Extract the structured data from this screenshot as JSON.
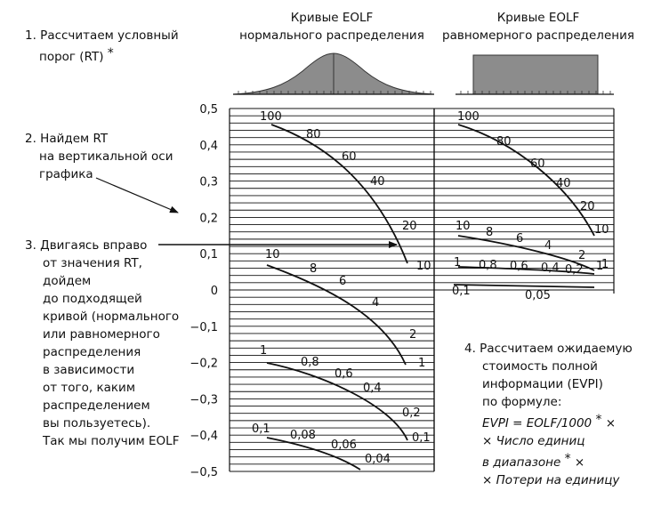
{
  "headers": {
    "normal": [
      "Кривые EOLF",
      "нормального распределения"
    ],
    "uniform": [
      "Кривые EOLF",
      "равномерного распределения"
    ]
  },
  "steps": {
    "step1": {
      "lines": [
        "1. Рассчитаем условный",
        "порог (RT)"
      ],
      "star": "*"
    },
    "step2": {
      "lines": [
        "2. Найдем RT",
        "на вертикальной оси",
        "графика"
      ]
    },
    "step3": {
      "lines": [
        "3.  Двигаясь вправо",
        "от значения RT,",
        "дойдем",
        "до подходящей",
        "кривой (нормального",
        "или равномерного",
        "распределения",
        "в зависимости",
        "от того, каким",
        "распределением",
        "вы пользуетесь).",
        "Так мы получим EOLF"
      ]
    },
    "step4": {
      "lines": [
        "4.  Рассчитаем ожидаемую",
        "стоимость полной",
        "информации (EVPI)",
        "по формуле:"
      ],
      "formula": [
        "EVPI = EOLF/1000",
        "× Число единиц",
        "в диапазоне",
        "× Потери на единицу"
      ],
      "star": "*",
      "times": "×"
    }
  },
  "axis": {
    "ticks": [
      "0,5",
      "0,4",
      "0,3",
      "0,2",
      "0,1",
      "0",
      "−0,1",
      "−0,2",
      "−0,3",
      "−0,4",
      "−0,5"
    ]
  },
  "normal_curve_groups": [
    {
      "labels": [
        "100",
        "80",
        "60",
        "40",
        "20",
        "10"
      ]
    },
    {
      "labels": [
        "10",
        "8",
        "6",
        "4",
        "2",
        "1"
      ]
    },
    {
      "labels": [
        "1",
        "0,8",
        "0,6",
        "0,4",
        "0,2",
        "0,1"
      ]
    },
    {
      "labels": [
        "0,1",
        "0,08",
        "0,06",
        "0,04"
      ]
    }
  ],
  "uniform_curve_groups": [
    {
      "labels": [
        "100",
        "80",
        "60",
        "40",
        "20",
        "10"
      ]
    },
    {
      "labels": [
        "10",
        "8",
        "6",
        "4",
        "2",
        "1"
      ]
    },
    {
      "labels": [
        "1",
        "0,8",
        "0,6",
        "0,4",
        "0,2",
        "1"
      ]
    },
    {
      "labels": [
        "0,1",
        "0,05"
      ]
    }
  ]
}
